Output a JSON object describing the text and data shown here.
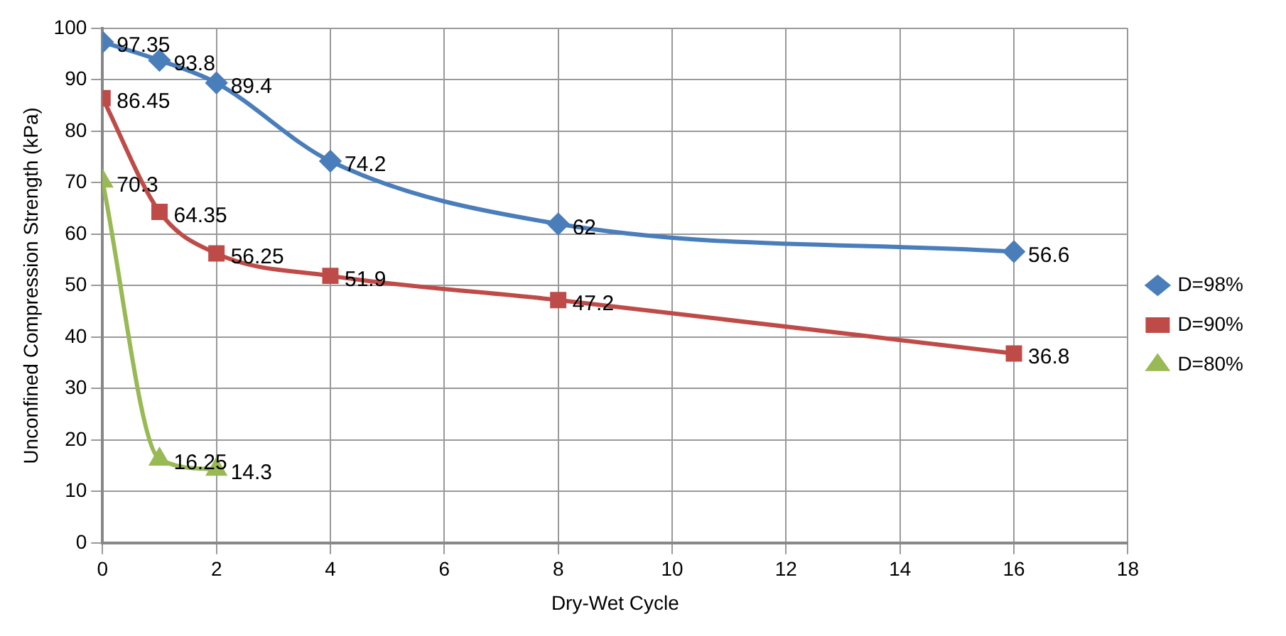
{
  "chart_data": {
    "type": "line",
    "xlabel": "Dry-Wet Cycle",
    "ylabel": "Unconfined Compression Strength (kPa)",
    "xlim": [
      0,
      18
    ],
    "xticks": [
      0,
      2,
      4,
      6,
      8,
      10,
      12,
      14,
      16,
      18
    ],
    "ylim": [
      0,
      100
    ],
    "yticks": [
      0,
      10,
      20,
      30,
      40,
      50,
      60,
      70,
      80,
      90,
      100
    ],
    "grid": true,
    "legend": "right",
    "data_labels": true,
    "line_style": "solid",
    "series": [
      {
        "name": "D=98%",
        "color": "#4a7ebb",
        "marker": "diamond",
        "x": [
          0,
          1,
          2,
          4,
          8,
          16
        ],
        "values": [
          97.35,
          93.8,
          89.4,
          74.2,
          62,
          56.6
        ]
      },
      {
        "name": "D=90%",
        "color": "#be4b48",
        "marker": "square",
        "x": [
          0,
          1,
          2,
          4,
          8,
          16
        ],
        "values": [
          86.45,
          64.35,
          56.25,
          51.9,
          47.2,
          36.8
        ]
      },
      {
        "name": "D=80%",
        "color": "#98b954",
        "marker": "triangle",
        "x": [
          0,
          1,
          2
        ],
        "values": [
          70.3,
          16.25,
          14.3
        ]
      }
    ]
  }
}
